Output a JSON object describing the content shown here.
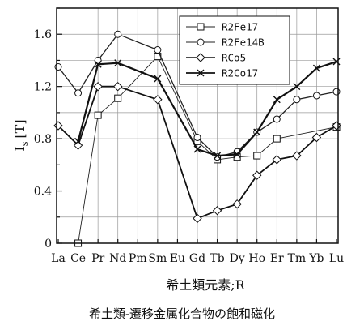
{
  "chart_data": {
    "type": "line",
    "categories": [
      "La",
      "Ce",
      "Pr",
      "Nd",
      "Pm",
      "Sm",
      "Eu",
      "Gd",
      "Tb",
      "Dy",
      "Ho",
      "Er",
      "Tm",
      "Yb",
      "Lu"
    ],
    "xlabel": "希土類元素;R",
    "ylabel": "I",
    "ylabel_subscript": "s",
    "ylabel_unit": "[T]",
    "ylim": [
      0,
      1.8
    ],
    "yticks": [
      "0",
      "0.4",
      "0.8",
      "1.2",
      "1.6"
    ],
    "ytick_values": [
      0,
      0.4,
      0.8,
      1.2,
      1.6
    ],
    "grid": true,
    "legend_position": "top-right",
    "series": [
      {
        "name": "R2Fe17",
        "marker": "square",
        "stroke": "#222222",
        "width": 0.9,
        "values": [
          null,
          0.0,
          0.98,
          1.11,
          null,
          1.43,
          null,
          0.78,
          0.64,
          0.66,
          0.67,
          0.8,
          null,
          null,
          0.89
        ]
      },
      {
        "name": "R2Fe14B",
        "marker": "circle",
        "stroke": "#222222",
        "width": 1.3,
        "values": [
          1.35,
          1.15,
          1.4,
          1.6,
          null,
          1.48,
          null,
          0.81,
          0.66,
          0.7,
          0.85,
          0.95,
          1.1,
          1.13,
          1.16
        ]
      },
      {
        "name": "RCo5",
        "marker": "diamond",
        "stroke": "#111111",
        "width": 1.8,
        "values": [
          0.9,
          0.75,
          1.2,
          1.2,
          null,
          1.1,
          null,
          0.19,
          0.25,
          0.3,
          0.52,
          0.64,
          0.67,
          0.81,
          0.9
        ]
      },
      {
        "name": "R2Co17",
        "marker": "cross",
        "stroke": "#111111",
        "width": 2.2,
        "values": [
          null,
          0.78,
          1.37,
          1.38,
          null,
          1.26,
          null,
          0.72,
          0.67,
          0.68,
          0.85,
          1.1,
          1.2,
          1.34,
          1.39
        ]
      }
    ]
  },
  "caption": "希土類-遷移金属化合物の飽和磁化"
}
